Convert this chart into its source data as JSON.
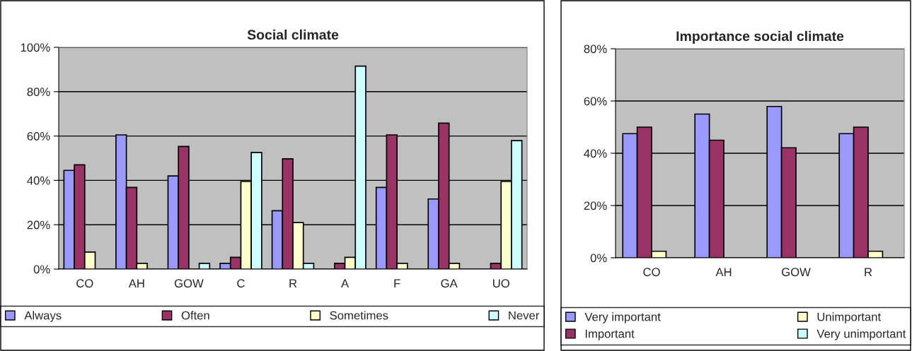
{
  "chart_data": [
    {
      "type": "bar",
      "title": "Social climate",
      "categories": [
        "CO",
        "AH",
        "GOW",
        "C",
        "R",
        "A",
        "F",
        "GA",
        "UO"
      ],
      "series": [
        {
          "name": "Always",
          "color": "#9999ff",
          "values": [
            44.5,
            60.5,
            42,
            2.6,
            26.3,
            null,
            36.8,
            31.6,
            null
          ]
        },
        {
          "name": "Often",
          "color": "#993366",
          "values": [
            47,
            36.8,
            55.3,
            5.3,
            49.7,
            2.6,
            60.5,
            65.8,
            2.6
          ]
        },
        {
          "name": "Sometimes",
          "color": "#ffffcc",
          "values": [
            7.7,
            2.6,
            null,
            39.5,
            21,
            5.3,
            2.6,
            2.6,
            39.5
          ]
        },
        {
          "name": "Never",
          "color": "#ccffff",
          "values": [
            null,
            null,
            2.6,
            52.6,
            2.6,
            91.5,
            null,
            null,
            57.9
          ]
        }
      ],
      "ylim": [
        0,
        100
      ],
      "yticks": [
        {
          "value": 0,
          "label": "0%"
        },
        {
          "value": 20,
          "label": "20%"
        },
        {
          "value": 40,
          "label": "40%"
        },
        {
          "value": 60,
          "label": "60%"
        },
        {
          "value": 80,
          "label": "80%"
        },
        {
          "value": 100,
          "label": "100%"
        }
      ],
      "grid": "y",
      "legend": "bottom"
    },
    {
      "type": "bar",
      "title": "Importance social climate",
      "categories": [
        "CO",
        "AH",
        "GOW",
        "R"
      ],
      "series": [
        {
          "name": "Very important",
          "color": "#9999ff",
          "values": [
            47.5,
            55,
            57.9,
            47.5
          ]
        },
        {
          "name": "Important",
          "color": "#993366",
          "values": [
            50,
            45,
            42.1,
            50
          ]
        },
        {
          "name": "Unimportant",
          "color": "#ffffcc",
          "values": [
            2.5,
            null,
            null,
            2.5
          ]
        },
        {
          "name": "Very unimportant",
          "color": "#ccffff",
          "values": [
            null,
            null,
            null,
            null
          ]
        }
      ],
      "ylim": [
        0,
        80
      ],
      "yticks": [
        {
          "value": 0,
          "label": "0%"
        },
        {
          "value": 20,
          "label": "20%"
        },
        {
          "value": 40,
          "label": "40%"
        },
        {
          "value": 60,
          "label": "60%"
        },
        {
          "value": 80,
          "label": "80%"
        }
      ],
      "grid": "y",
      "legend": "bottom"
    }
  ]
}
